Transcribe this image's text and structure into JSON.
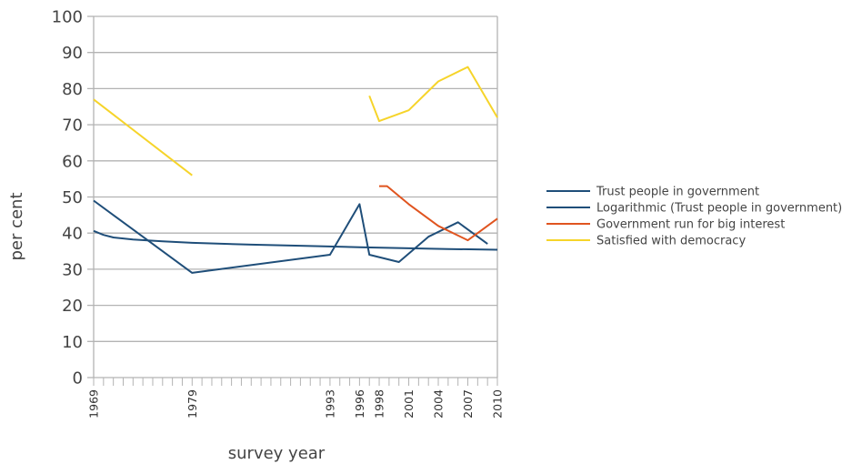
{
  "chart_data": {
    "type": "line",
    "title": "",
    "xlabel": "survey year",
    "ylabel": "per cent",
    "ylim": [
      0,
      100
    ],
    "yticks": [
      0,
      10,
      20,
      30,
      40,
      50,
      60,
      70,
      80,
      90,
      100
    ],
    "xlim": [
      1969,
      2010
    ],
    "xtick_labels": [
      "1969",
      "1979",
      "1993",
      "1996",
      "1998",
      "2001",
      "2004",
      "2007",
      "2010"
    ],
    "grid": "horizontal",
    "legend_position": "right",
    "series": [
      {
        "name": "Trust people in government",
        "color": "#1f4e79",
        "segments": [
          [
            [
              1969,
              49
            ],
            [
              1979,
              29
            ],
            [
              1993,
              34
            ],
            [
              1996,
              48
            ],
            [
              1997,
              34
            ],
            [
              2000,
              32
            ],
            [
              2003,
              39
            ],
            [
              2006,
              43
            ],
            [
              2009,
              37
            ]
          ]
        ]
      },
      {
        "name": "Logarithmic (Trust people in government)",
        "color": "#1f4e79",
        "segments": [
          [
            [
              1969,
              40.6
            ],
            [
              1970,
              39.5
            ],
            [
              1971,
              38.8
            ],
            [
              1973,
              38.2
            ],
            [
              1976,
              37.7
            ],
            [
              1979,
              37.3
            ],
            [
              1985,
              36.8
            ],
            [
              1990,
              36.5
            ],
            [
              1996,
              36.1
            ],
            [
              2001,
              35.8
            ],
            [
              2005,
              35.6
            ],
            [
              2010,
              35.4
            ]
          ]
        ]
      },
      {
        "name": "Government run for big interest",
        "color": "#e0541f",
        "segments": [
          [
            [
              1998,
              53
            ],
            [
              1998.8,
              53
            ],
            [
              2001,
              48
            ],
            [
              2004,
              42
            ],
            [
              2007,
              38
            ],
            [
              2010,
              44
            ]
          ]
        ]
      },
      {
        "name": "Satisfied with democracy",
        "color": "#f6d42a",
        "segments": [
          [
            [
              1969,
              77
            ],
            [
              1979,
              56
            ]
          ],
          [
            [
              1997,
              78
            ],
            [
              1998,
              71
            ],
            [
              2001,
              74
            ],
            [
              2004,
              82
            ],
            [
              2007,
              86
            ],
            [
              2010,
              72
            ]
          ]
        ]
      }
    ]
  }
}
